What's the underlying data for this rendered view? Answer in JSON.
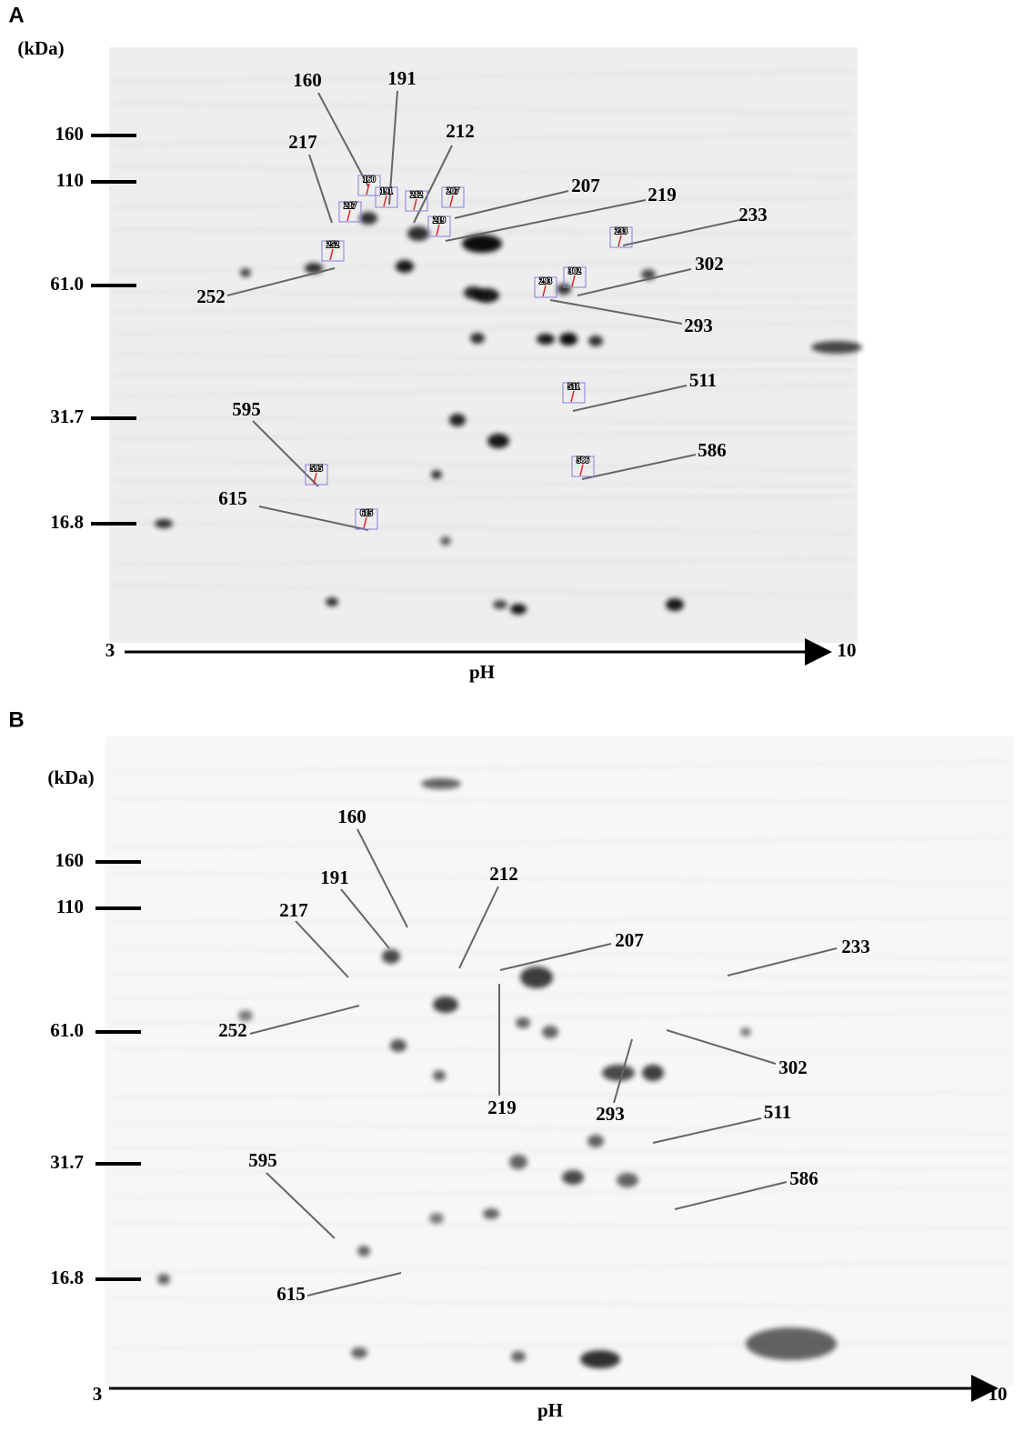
{
  "panels": [
    {
      "label": "A",
      "unit": "(kDa)",
      "mw_markers": [
        "160",
        "110",
        "61.0",
        "31.7",
        "16.8"
      ],
      "ph_start": "3",
      "ph_end": "10",
      "ph_label": "pH",
      "spots": [
        "160",
        "191",
        "212",
        "217",
        "207",
        "219",
        "233",
        "302",
        "293",
        "252",
        "511",
        "586",
        "595",
        "615"
      ]
    },
    {
      "label": "B",
      "unit": "(kDa)",
      "mw_markers": [
        "160",
        "110",
        "61.0",
        "31.7",
        "16.8"
      ],
      "ph_start": "3",
      "ph_end": "10",
      "ph_label": "pH",
      "spots": [
        "160",
        "191",
        "212",
        "217",
        "207",
        "219",
        "233",
        "302",
        "293",
        "252",
        "511",
        "586",
        "595",
        "615"
      ]
    }
  ]
}
